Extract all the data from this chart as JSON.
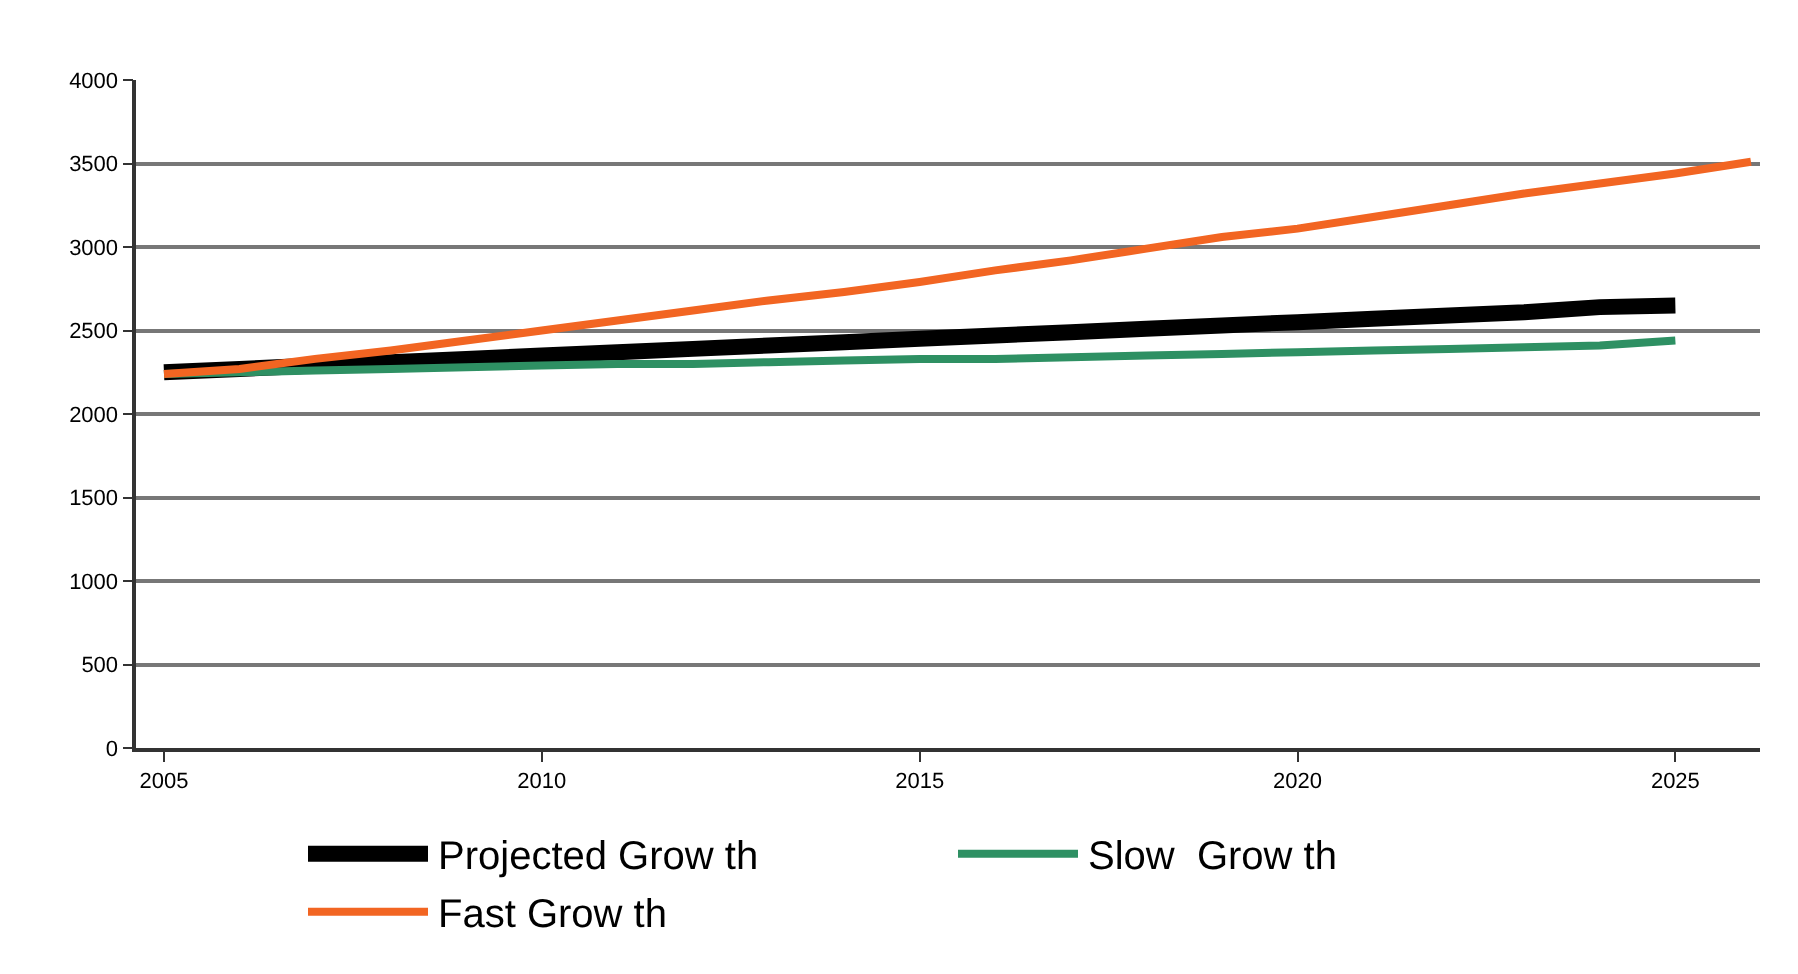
{
  "chart_data": {
    "type": "line",
    "x": [
      2005,
      2006,
      2007,
      2008,
      2009,
      2010,
      2011,
      2012,
      2013,
      2014,
      2015,
      2016,
      2017,
      2018,
      2019,
      2020,
      2021,
      2022,
      2023,
      2024,
      2025
    ],
    "series": [
      {
        "name": "Projected Grow th",
        "color": "#000000",
        "values": [
          2250,
          2270,
          2290,
          2310,
          2330,
          2350,
          2370,
          2390,
          2410,
          2430,
          2450,
          2470,
          2490,
          2510,
          2530,
          2550,
          2570,
          2590,
          2610,
          2640,
          2650
        ]
      },
      {
        "name": "Slow  Grow th",
        "color": "#2e9063",
        "values": [
          2240,
          2250,
          2260,
          2270,
          2280,
          2290,
          2300,
          2300,
          2310,
          2320,
          2330,
          2330,
          2340,
          2350,
          2360,
          2370,
          2380,
          2390,
          2400,
          2410,
          2440
        ]
      },
      {
        "name": "Fast Grow th",
        "color": "#f26522",
        "x": [
          2005,
          2006,
          2007,
          2008,
          2009,
          2010,
          2011,
          2012,
          2013,
          2014,
          2015,
          2016,
          2017,
          2018,
          2019,
          2020,
          2021,
          2022,
          2023,
          2024,
          2025,
          2026
        ],
        "values": [
          2240,
          2270,
          2330,
          2380,
          2440,
          2500,
          2560,
          2620,
          2680,
          2730,
          2790,
          2860,
          2920,
          2990,
          3060,
          3110,
          3180,
          3250,
          3320,
          3380,
          3440,
          3510
        ]
      }
    ],
    "xlim": [
      2004.63,
      2026.12
    ],
    "xticks": [
      2005,
      2010,
      2015,
      2020,
      2025
    ],
    "ylim": [
      0,
      4000
    ],
    "yticks": [
      0,
      500,
      1000,
      1500,
      2000,
      2500,
      3000,
      3500,
      4000
    ],
    "grid": "y",
    "legend": "bottom",
    "marker": "none",
    "line_style": "solid"
  }
}
